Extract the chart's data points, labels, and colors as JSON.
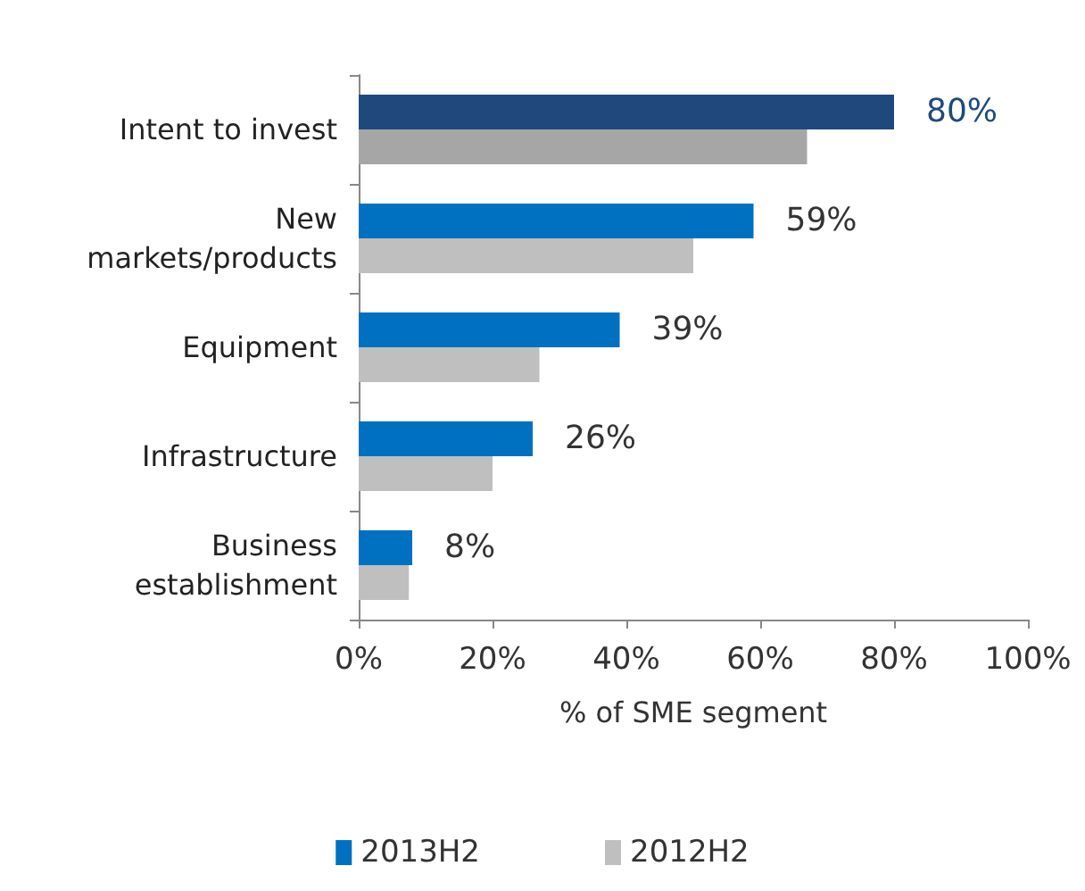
{
  "chart_data": {
    "type": "bar",
    "orientation": "horizontal",
    "categories": [
      "Intent to invest",
      "New\nmarkets/products",
      "Equipment",
      "Infrastructure",
      "Business\nestablishment"
    ],
    "series": [
      {
        "name": "2013H2",
        "color": "#0070c0",
        "colors": [
          "#1f497d",
          "#0070c0",
          "#0070c0",
          "#0070c0",
          "#0070c0"
        ],
        "values": [
          80,
          59,
          39,
          26,
          8
        ],
        "value_labels": [
          "80%",
          "59%",
          "39%",
          "26%",
          "8%"
        ]
      },
      {
        "name": "2012H2",
        "color": "#bfbfbf",
        "colors": [
          "#a6a6a6",
          "#bfbfbf",
          "#bfbfbf",
          "#bfbfbf",
          "#bfbfbf"
        ],
        "values": [
          67,
          50,
          27,
          20,
          7.5
        ]
      }
    ],
    "xlabel": "% of SME segment",
    "xlim": [
      0,
      100
    ],
    "xticks": [
      {
        "value": 0,
        "label": "0%"
      },
      {
        "value": 20,
        "label": "20%"
      },
      {
        "value": 40,
        "label": "40%"
      },
      {
        "value": 60,
        "label": "60%"
      },
      {
        "value": 80,
        "label": "80%"
      },
      {
        "value": 100,
        "label": "100%"
      }
    ],
    "grid": false,
    "legend": "bottom"
  }
}
